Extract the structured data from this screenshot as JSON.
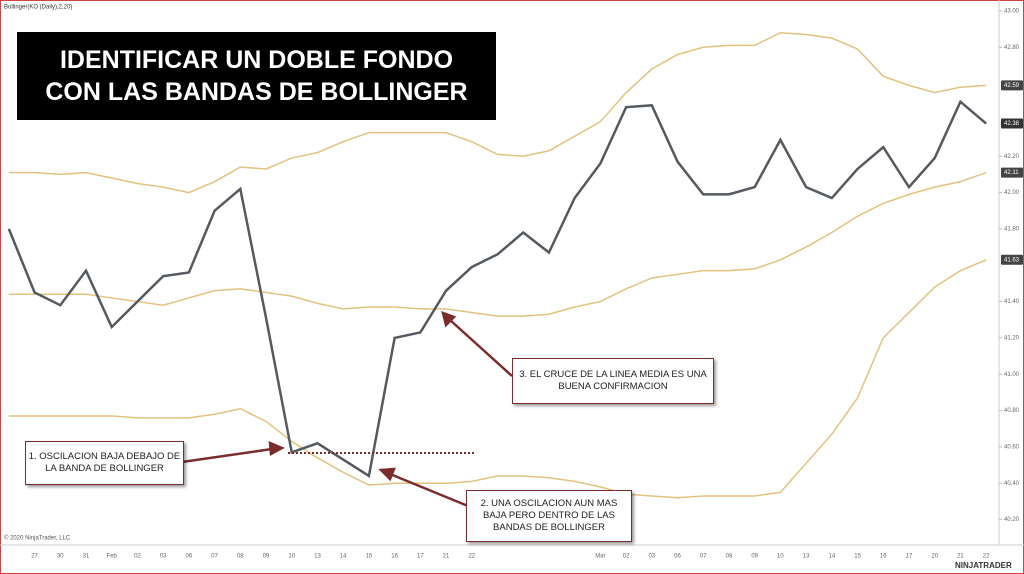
{
  "chart_data": {
    "type": "line",
    "header": "Bollinger(KO (Daily),2,20)",
    "copyright": "© 2020 NinjaTrader, LLC",
    "brand": "NINJATRADER",
    "title_lines": [
      "IDENTIFICAR UN DOBLE FONDO",
      "CON LAS BANDAS DE BOLLINGER"
    ],
    "annotations": [
      [
        "1. OSCILACION BAJA DEBAJO DE",
        "LA BANDA DE BOLLINGER"
      ],
      [
        "2. UNA OSCILACION AUN MAS",
        "BAJA PERO DENTRO DE LAS",
        "BANDAS DE BOLLINGER"
      ],
      [
        "3. EL CRUCE DE LA LINEA MEDIA ES UNA",
        "BUENA CONFIRMACION"
      ]
    ],
    "categories": [
      null,
      "27",
      "30",
      "31",
      "Feb",
      "02",
      "03",
      "06",
      "07",
      "08",
      "09",
      "10",
      "13",
      "14",
      "15",
      "16",
      "17",
      "21",
      "22",
      null,
      null,
      null,
      null,
      "Mar",
      "02",
      "03",
      "06",
      "07",
      "08",
      "09",
      "10",
      "13",
      "14",
      "15",
      "16",
      "17",
      "20",
      "21",
      "22"
    ],
    "series": [
      {
        "color": "#e3c27e",
        "values": [
          42.11,
          42.11,
          42.1,
          42.11,
          42.08,
          42.05,
          42.03,
          42.0,
          42.06,
          42.14,
          42.13,
          42.19,
          42.22,
          42.28,
          42.33,
          42.33,
          42.33,
          42.33,
          42.28,
          42.21,
          42.2,
          42.23,
          42.31,
          42.39,
          42.55,
          42.68,
          42.76,
          42.8,
          42.81,
          42.81,
          42.88,
          42.87,
          42.85,
          42.79,
          42.64,
          42.59,
          42.55,
          42.58,
          42.59
        ]
      },
      {
        "color": "#e3c27e",
        "values": [
          41.44,
          41.44,
          41.44,
          41.44,
          41.42,
          41.4,
          41.38,
          41.42,
          41.46,
          41.47,
          41.45,
          41.43,
          41.39,
          41.36,
          41.37,
          41.37,
          41.36,
          41.36,
          41.34,
          41.32,
          41.32,
          41.33,
          41.37,
          41.4,
          41.47,
          41.53,
          41.55,
          41.57,
          41.57,
          41.58,
          41.63,
          41.7,
          41.78,
          41.87,
          41.94,
          41.99,
          42.03,
          42.06,
          42.11
        ]
      },
      {
        "color": "#e3c27e",
        "values": [
          40.77,
          40.77,
          40.77,
          40.77,
          40.77,
          40.76,
          40.76,
          40.76,
          40.78,
          40.81,
          40.74,
          40.63,
          40.54,
          40.46,
          40.39,
          40.4,
          40.4,
          40.4,
          40.41,
          40.44,
          40.44,
          40.43,
          40.41,
          40.38,
          40.34,
          40.33,
          40.32,
          40.33,
          40.33,
          40.33,
          40.35,
          40.51,
          40.67,
          40.87,
          41.2,
          41.34,
          41.48,
          41.57,
          41.63
        ]
      },
      {
        "color": "#555a60",
        "values": [
          41.8,
          41.45,
          41.38,
          41.57,
          41.26,
          41.4,
          41.54,
          41.56,
          41.9,
          42.02,
          41.31,
          40.57,
          40.62,
          40.53,
          40.44,
          41.2,
          41.23,
          41.46,
          41.59,
          41.66,
          41.78,
          41.67,
          41.97,
          42.16,
          42.47,
          42.48,
          42.17,
          41.99,
          41.99,
          42.03,
          42.29,
          42.03,
          41.97,
          42.13,
          42.25,
          42.03,
          42.19,
          42.5,
          42.38
        ]
      }
    ],
    "ylim": [
      40.06,
      43.06
    ],
    "yticks": [
      {
        "value": 43,
        "label": "43.00"
      },
      {
        "value": 42.8,
        "label": "42.80"
      },
      {
        "value": 42.2,
        "label": "42.20"
      },
      {
        "value": 42,
        "label": "42.00"
      },
      {
        "value": 41.8,
        "label": "41.80"
      },
      {
        "value": 41.4,
        "label": "41.40"
      },
      {
        "value": 41.2,
        "label": "41.20"
      },
      {
        "value": 41,
        "label": "41.00"
      },
      {
        "value": 40.8,
        "label": "40.80"
      },
      {
        "value": 40.6,
        "label": "40.60"
      },
      {
        "value": 40.4,
        "label": "40.40"
      },
      {
        "value": 40.2,
        "label": "40.20"
      }
    ],
    "grid": false
  }
}
